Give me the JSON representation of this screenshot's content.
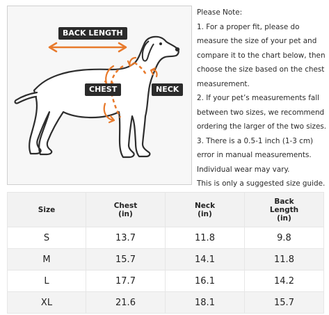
{
  "diagram": {
    "labels": {
      "back_length": "BACK LENGTH",
      "chest": "CHEST",
      "neck": "NECK"
    },
    "colors": {
      "accent": "#e87a2c",
      "tag_bg": "#2b2b2b",
      "outline": "#2d2d2d"
    }
  },
  "notes": {
    "lines": [
      "Please Note:",
      "1. For a proper fit, please do",
      "measure the size of your pet and",
      "compare it to the chart below, then",
      "choose the size based on the chest",
      "measurement.",
      "2. If your pet’s measurements fall",
      "between two sizes, we recommend",
      "ordering the larger of the two sizes.",
      "3. There is a 0.5-1 inch (1-3 cm)",
      "error in manual measurements.",
      "Individual wear may vary.",
      "This is only a suggested size guide."
    ]
  },
  "table": {
    "headers": [
      {
        "l1": "Size",
        "l2": "",
        "l3": ""
      },
      {
        "l1": "Chest",
        "l2": "(in)",
        "l3": ""
      },
      {
        "l1": "Neck",
        "l2": "(in)",
        "l3": ""
      },
      {
        "l1": "Back",
        "l2": "Length",
        "l3": "(in)"
      }
    ],
    "rows": [
      [
        "S",
        "13.7",
        "11.8",
        "9.8"
      ],
      [
        "M",
        "15.7",
        "14.1",
        "11.8"
      ],
      [
        "L",
        "17.7",
        "16.1",
        "14.2"
      ],
      [
        "XL",
        "21.6",
        "18.1",
        "15.7"
      ]
    ]
  }
}
